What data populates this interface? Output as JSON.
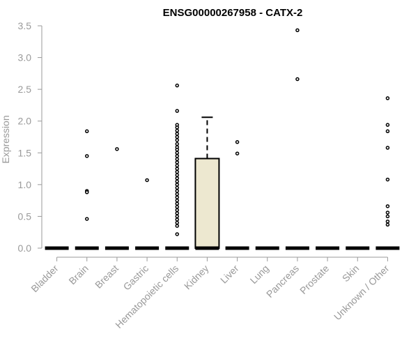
{
  "chart_data": {
    "type": "box",
    "title": "ENSG00000267958 - CATX-2",
    "xlabel": "",
    "ylabel": "Expression",
    "ylim": [
      0,
      3.5
    ],
    "yticks": [
      "0.0",
      "0.5",
      "1.0",
      "1.5",
      "2.0",
      "2.5",
      "3.0",
      "3.5"
    ],
    "ytick_values": [
      0,
      0.5,
      1.0,
      1.5,
      2.0,
      2.5,
      3.0,
      3.5
    ],
    "grid": false,
    "categories": [
      "Bladder",
      "Brain",
      "Breast",
      "Gastric",
      "Hematopoietic cells",
      "Kidney",
      "Liver",
      "Lung",
      "Pancreas",
      "Prostate",
      "Skin",
      "Unknown / Other"
    ],
    "boxes": [
      {
        "category": "Bladder",
        "q1": 0,
        "median": 0,
        "q3": 0,
        "whisker_low": 0,
        "whisker_high": 0,
        "outliers": []
      },
      {
        "category": "Brain",
        "q1": 0,
        "median": 0,
        "q3": 0,
        "whisker_low": 0,
        "whisker_high": 0,
        "outliers": [
          1.84,
          1.45,
          0.9,
          0.88,
          0.46
        ]
      },
      {
        "category": "Breast",
        "q1": 0,
        "median": 0,
        "q3": 0,
        "whisker_low": 0,
        "whisker_high": 0,
        "outliers": [
          1.56
        ]
      },
      {
        "category": "Gastric",
        "q1": 0,
        "median": 0,
        "q3": 0,
        "whisker_low": 0,
        "whisker_high": 0,
        "outliers": [
          1.07
        ]
      },
      {
        "category": "Hematopoietic cells",
        "q1": 0,
        "median": 0,
        "q3": 0,
        "whisker_low": 0,
        "whisker_high": 0,
        "outliers": [
          2.56,
          2.16,
          1.94,
          1.9,
          1.85,
          1.8,
          1.75,
          1.7,
          1.64,
          1.59,
          1.55,
          1.5,
          1.45,
          1.4,
          1.35,
          1.3,
          1.25,
          1.2,
          1.15,
          1.1,
          1.05,
          1.0,
          0.95,
          0.9,
          0.85,
          0.8,
          0.75,
          0.7,
          0.65,
          0.6,
          0.55,
          0.5,
          0.45,
          0.4,
          0.35,
          0.22
        ]
      },
      {
        "category": "Kidney",
        "q1": 0,
        "median": 0,
        "q3": 1.41,
        "whisker_low": 0,
        "whisker_high": 2.06,
        "outliers": []
      },
      {
        "category": "Liver",
        "q1": 0,
        "median": 0,
        "q3": 0,
        "whisker_low": 0,
        "whisker_high": 0,
        "outliers": [
          1.67,
          1.49
        ]
      },
      {
        "category": "Lung",
        "q1": 0,
        "median": 0,
        "q3": 0,
        "whisker_low": 0,
        "whisker_high": 0,
        "outliers": []
      },
      {
        "category": "Pancreas",
        "q1": 0,
        "median": 0,
        "q3": 0,
        "whisker_low": 0,
        "whisker_high": 0,
        "outliers": [
          3.43,
          2.66
        ]
      },
      {
        "category": "Prostate",
        "q1": 0,
        "median": 0,
        "q3": 0,
        "whisker_low": 0,
        "whisker_high": 0,
        "outliers": []
      },
      {
        "category": "Skin",
        "q1": 0,
        "median": 0,
        "q3": 0,
        "whisker_low": 0,
        "whisker_high": 0,
        "outliers": []
      },
      {
        "category": "Unknown / Other",
        "q1": 0,
        "median": 0,
        "q3": 0,
        "whisker_low": 0,
        "whisker_high": 0,
        "outliers": [
          2.36,
          1.94,
          1.84,
          1.58,
          1.08,
          0.66,
          0.56,
          0.5,
          0.42,
          0.37
        ]
      }
    ],
    "colors": {
      "box_fill": "#ede8d0",
      "box_fill_default": "#ffffff",
      "line": "#000000",
      "axis": "#999999",
      "text": "#999999",
      "title": "#000000"
    }
  }
}
